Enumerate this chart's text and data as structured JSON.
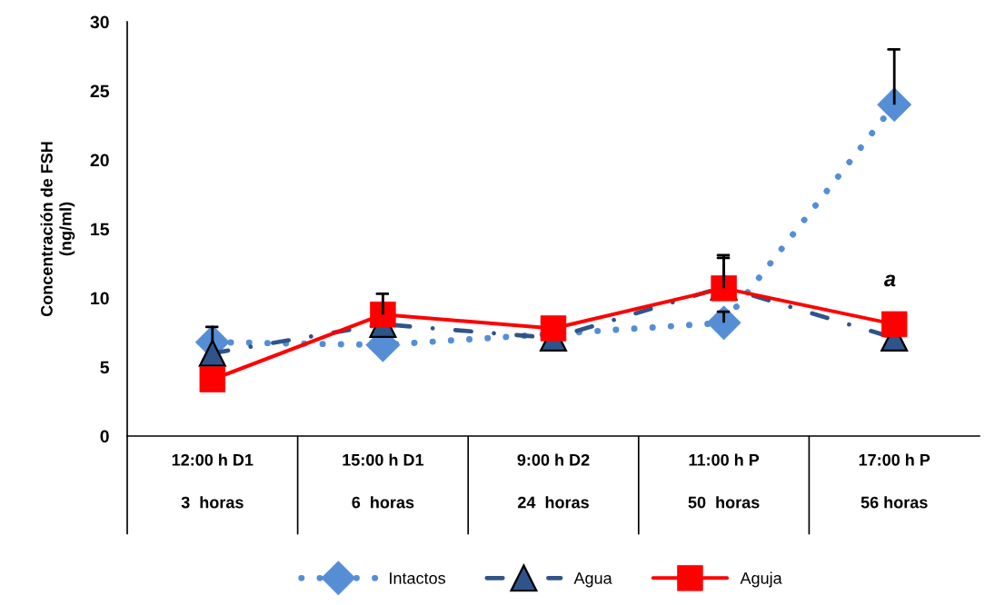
{
  "chart_data": {
    "type": "line",
    "ylabel": "Concentración de FSH\n(ng/ml)",
    "categories": [
      "12:00 h D1\n\n3  horas",
      "15:00 h D1\n\n6  horas",
      "9:00 h D2\n\n24  horas",
      "11:00 h P\n\n50  horas",
      "17:00 h P\n\n56 horas"
    ],
    "ylim": [
      0,
      30
    ],
    "yticks": [
      0,
      5,
      10,
      15,
      20,
      25,
      30
    ],
    "grid": false,
    "legend": "bottom",
    "series": [
      {
        "name": "Intactos",
        "color": "#558ed5",
        "marker": "diamond",
        "line_style": "dotted",
        "values": [
          6.8,
          6.6,
          null,
          8.2,
          24.0
        ],
        "errors": [
          [
            6.8,
            7.9
          ],
          null,
          null,
          [
            8.2,
            9.0
          ],
          [
            24.0,
            28.0
          ]
        ]
      },
      {
        "name": "Agua",
        "color": "#2f5489",
        "marker": "triangle",
        "line_style": "dashed",
        "values": [
          6.0,
          8.1,
          7.1,
          10.8,
          7.1
        ],
        "errors": [
          null,
          null,
          null,
          [
            10.8,
            12.9
          ],
          null
        ]
      },
      {
        "name": "Aguja",
        "color": "#ff0000",
        "marker": "square",
        "line_style": "solid",
        "values": [
          4.1,
          8.8,
          7.8,
          10.7,
          8.1
        ],
        "errors": [
          null,
          [
            8.8,
            10.3
          ],
          null,
          [
            10.7,
            13.1
          ],
          null
        ]
      }
    ],
    "annotations": [
      "a"
    ]
  }
}
